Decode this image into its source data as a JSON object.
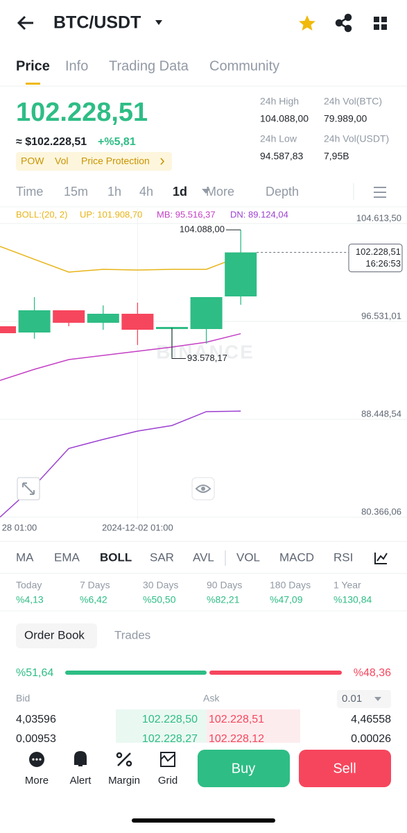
{
  "header": {
    "pair": "BTC/USDT"
  },
  "tabs": [
    "Price",
    "Info",
    "Trading Data",
    "Community"
  ],
  "price": {
    "last": "102.228,51",
    "fiat": "≈ $102.228,51",
    "change": "+%5,81",
    "tags": [
      "POW",
      "Vol",
      "Price Protection"
    ]
  },
  "stats": [
    {
      "label": "24h High",
      "value": "104.088,00"
    },
    {
      "label": "24h Vol(BTC)",
      "value": "79.989,00"
    },
    {
      "label": "24h Low",
      "value": "94.587,83"
    },
    {
      "label": "24h Vol(USDT)",
      "value": "7,95B"
    }
  ],
  "intervals": [
    "Time",
    "15m",
    "1h",
    "4h",
    "1d",
    "More",
    "Depth"
  ],
  "chart_data": {
    "type": "candlestick",
    "legend": {
      "title": "BOLL:(20, 2)",
      "labels": [
        "UP: 101.908,70",
        "MB: 95.516,37",
        "DN: 89.124,04"
      ]
    },
    "categories": [
      "28 01:00",
      null,
      null,
      null,
      "2024-12-02 01:00",
      null,
      null,
      null
    ],
    "open": [
      96130,
      95614,
      97448,
      96417,
      97162,
      95900,
      95900,
      98595
    ],
    "high": [
      96130,
      98537,
      97448,
      97849,
      98079,
      96072,
      98537,
      104088
    ],
    "low": [
      95557,
      95098,
      96130,
      95843,
      94582,
      93578.17,
      94697,
      97907
    ],
    "close": [
      95557,
      97448,
      96417,
      97162,
      95843,
      96072,
      98537,
      102228.51
    ],
    "up_color": "#2ebd85",
    "down_color": "#f6465d",
    "series": [
      {
        "color": "#e7b416",
        "values": [
          102722,
          101659,
          100601,
          100830,
          100773,
          100830,
          100830,
          101908.7
        ]
      },
      {
        "color": "#c43fc4",
        "values": [
          91659,
          92576,
          93379,
          93723,
          94066,
          94410,
          94811,
          95516.37
        ]
      },
      {
        "color": "#9c3fd0",
        "values": [
          80367,
          82947,
          86042,
          86787,
          87475,
          87933,
          89080,
          89124.04
        ]
      }
    ],
    "ylim": [
      80366.06,
      104613.5
    ],
    "yticks": [
      {
        "value": 104613.5,
        "label": "104.613,50"
      },
      {
        "value": 96531.01,
        "label": "96.531,01"
      },
      {
        "value": 88448.54,
        "label": "88.448,54"
      },
      {
        "value": 80366.06,
        "label": "80.366,06"
      }
    ],
    "grid": true,
    "annotations": {
      "high": "104.088,00",
      "low": "93.578,17",
      "last_price": "102.228,51",
      "countdown": "16:26:53",
      "watermark": "BINANCE"
    }
  },
  "indicators": [
    "MA",
    "EMA",
    "BOLL",
    "SAR",
    "AVL",
    "VOL",
    "MACD",
    "RSI"
  ],
  "performance": [
    {
      "label": "Today",
      "value": "%4,13"
    },
    {
      "label": "7 Days",
      "value": "%6,42"
    },
    {
      "label": "30 Days",
      "value": "%50,50"
    },
    {
      "label": "90 Days",
      "value": "%82,21"
    },
    {
      "label": "180 Days",
      "value": "%47,09"
    },
    {
      "label": "1 Year",
      "value": "%130,84"
    }
  ],
  "order_book": {
    "tabs": [
      "Order Book",
      "Trades"
    ],
    "bid_ratio": "%51,64",
    "ask_ratio": "%48,36",
    "bid_label": "Bid",
    "ask_label": "Ask",
    "precision": "0.01",
    "rows": [
      [
        "4,03596",
        "102.228,50",
        "102.228,51",
        "4,46558"
      ],
      [
        "0,00953",
        "102.228,27",
        "102.228,12",
        "0,00026"
      ]
    ]
  },
  "bottom": {
    "actions": [
      "More",
      "Alert",
      "Margin",
      "Grid"
    ],
    "buy": "Buy",
    "sell": "Sell"
  }
}
